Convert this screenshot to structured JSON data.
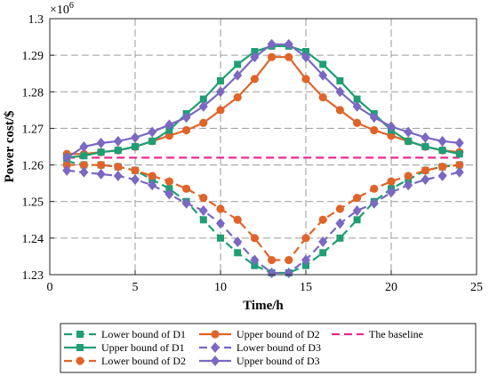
{
  "chart_data": {
    "type": "line",
    "title": "",
    "xlabel": "Time/h",
    "ylabel": "Power cost/$",
    "y_exponent_label": "×10",
    "y_exponent": "6",
    "xlim": [
      0,
      25
    ],
    "ylim": [
      1.23,
      1.3
    ],
    "xticks": [
      0,
      5,
      10,
      15,
      20,
      25
    ],
    "yticks": [
      1.23,
      1.24,
      1.25,
      1.26,
      1.27,
      1.28,
      1.29,
      1.3
    ],
    "ytick_labels": [
      "1.23",
      "1.24",
      "1.25",
      "1.26",
      "1.27",
      "1.28",
      "1.29",
      "1.3"
    ],
    "grid": true,
    "legend_position": "bottom",
    "x": [
      1,
      2,
      3,
      4,
      5,
      6,
      7,
      8,
      9,
      10,
      11,
      12,
      13,
      14,
      15,
      16,
      17,
      18,
      19,
      20,
      21,
      22,
      23,
      24
    ],
    "series": [
      {
        "name": "Lower bound of D1",
        "color": "#1f9e75",
        "dash": "dashed",
        "marker": "square",
        "values": [
          1.261,
          1.26,
          1.26,
          1.2595,
          1.2585,
          1.256,
          1.2535,
          1.25,
          1.245,
          1.24,
          1.236,
          1.2325,
          1.2305,
          1.2305,
          1.2325,
          1.236,
          1.24,
          1.245,
          1.25,
          1.2535,
          1.256,
          1.2585,
          1.2595,
          1.26
        ]
      },
      {
        "name": "Upper bound of D1",
        "color": "#1f9e75",
        "dash": "solid",
        "marker": "square",
        "values": [
          1.262,
          1.2625,
          1.2635,
          1.264,
          1.265,
          1.2665,
          1.2695,
          1.274,
          1.278,
          1.283,
          1.2875,
          1.291,
          1.2925,
          1.2925,
          1.291,
          1.2875,
          1.283,
          1.278,
          1.274,
          1.2695,
          1.2665,
          1.265,
          1.264,
          1.263
        ]
      },
      {
        "name": "Lower bound of D2",
        "color": "#e0642a",
        "dash": "dashed",
        "marker": "circle",
        "values": [
          1.26,
          1.26,
          1.26,
          1.2595,
          1.2585,
          1.257,
          1.2555,
          1.2535,
          1.251,
          1.248,
          1.245,
          1.24,
          1.234,
          1.234,
          1.24,
          1.245,
          1.248,
          1.251,
          1.2535,
          1.2555,
          1.257,
          1.2585,
          1.2595,
          1.26
        ]
      },
      {
        "name": "Upper bound of D2",
        "color": "#e0642a",
        "dash": "solid",
        "marker": "circle",
        "values": [
          1.263,
          1.263,
          1.2635,
          1.264,
          1.265,
          1.2665,
          1.268,
          1.2695,
          1.2715,
          1.275,
          1.2785,
          1.2835,
          1.2895,
          1.2895,
          1.2835,
          1.2785,
          1.275,
          1.2715,
          1.2695,
          1.268,
          1.2665,
          1.265,
          1.264,
          1.2635
        ]
      },
      {
        "name": "Lower bound of D3",
        "color": "#7b68c2",
        "dash": "dashed",
        "marker": "diamond",
        "values": [
          1.2585,
          1.258,
          1.2575,
          1.257,
          1.256,
          1.2545,
          1.252,
          1.2495,
          1.2475,
          1.244,
          1.239,
          1.234,
          1.2305,
          1.2305,
          1.234,
          1.239,
          1.244,
          1.2475,
          1.2495,
          1.2525,
          1.2545,
          1.256,
          1.257,
          1.258
        ]
      },
      {
        "name": "Upper bound of D3",
        "color": "#7b68c2",
        "dash": "solid",
        "marker": "diamond",
        "values": [
          1.262,
          1.265,
          1.266,
          1.2665,
          1.2675,
          1.269,
          1.271,
          1.273,
          1.276,
          1.28,
          1.2845,
          1.2895,
          1.293,
          1.293,
          1.2895,
          1.2845,
          1.28,
          1.276,
          1.273,
          1.2705,
          1.269,
          1.2675,
          1.2665,
          1.266
        ]
      },
      {
        "name": "The baseline",
        "color": "#ee2a8e",
        "dash": "dashed",
        "marker": "none",
        "values": [
          1.262,
          1.262,
          1.262,
          1.262,
          1.262,
          1.262,
          1.262,
          1.262,
          1.262,
          1.262,
          1.262,
          1.262,
          1.262,
          1.262,
          1.262,
          1.262,
          1.262,
          1.262,
          1.262,
          1.262,
          1.262,
          1.262,
          1.262,
          1.262
        ]
      }
    ]
  }
}
